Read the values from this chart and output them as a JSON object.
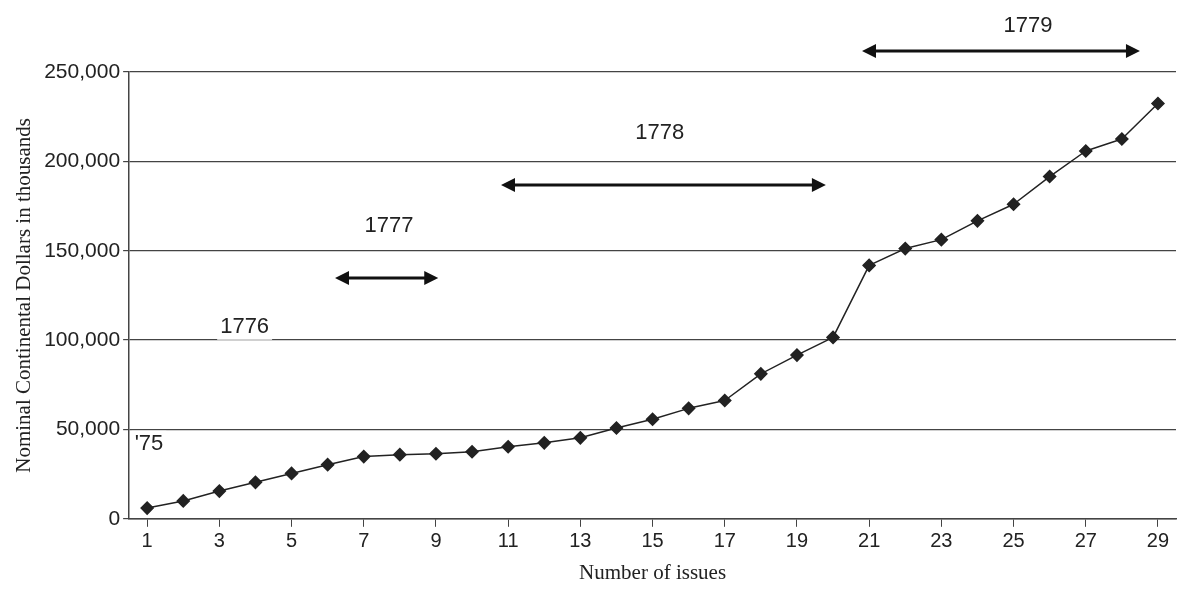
{
  "chart_data": {
    "type": "line",
    "xlabel": "Number of issues",
    "ylabel": "Nominal Continental Dollars in thousands",
    "x": [
      1,
      2,
      3,
      4,
      5,
      6,
      7,
      8,
      9,
      10,
      11,
      12,
      13,
      14,
      15,
      16,
      17,
      18,
      19,
      20,
      21,
      22,
      23,
      24,
      25,
      26,
      27,
      28,
      29
    ],
    "series": [
      {
        "color": "#222222",
        "values": [
          6000,
          10000,
          15500,
          20400,
          25400,
          30300,
          34800,
          35900,
          36400,
          37500,
          40300,
          42500,
          45300,
          50800,
          55700,
          61800,
          66200,
          81100,
          91600,
          101500,
          141800,
          151200,
          156200,
          166700,
          176000,
          191500,
          205800,
          212500,
          232400
        ]
      }
    ],
    "xlim": [
      0.5,
      29.5
    ],
    "xticks": [
      1,
      3,
      5,
      7,
      9,
      11,
      13,
      15,
      17,
      19,
      21,
      23,
      25,
      27,
      29
    ],
    "ylim": [
      0,
      250000
    ],
    "yticks": [
      {
        "value": 0,
        "label": "0"
      },
      {
        "value": 50000,
        "label": "50,000"
      },
      {
        "value": 100000,
        "label": "100,000"
      },
      {
        "value": 150000,
        "label": "150,000"
      },
      {
        "value": 200000,
        "label": "200,000"
      },
      {
        "value": 250000,
        "label": "250,000"
      }
    ],
    "grid": "y",
    "legend": false,
    "marker": "diamond",
    "line_style": "solid",
    "annotations": [
      "'75",
      "1776",
      "1777",
      "1778",
      "1779"
    ]
  }
}
